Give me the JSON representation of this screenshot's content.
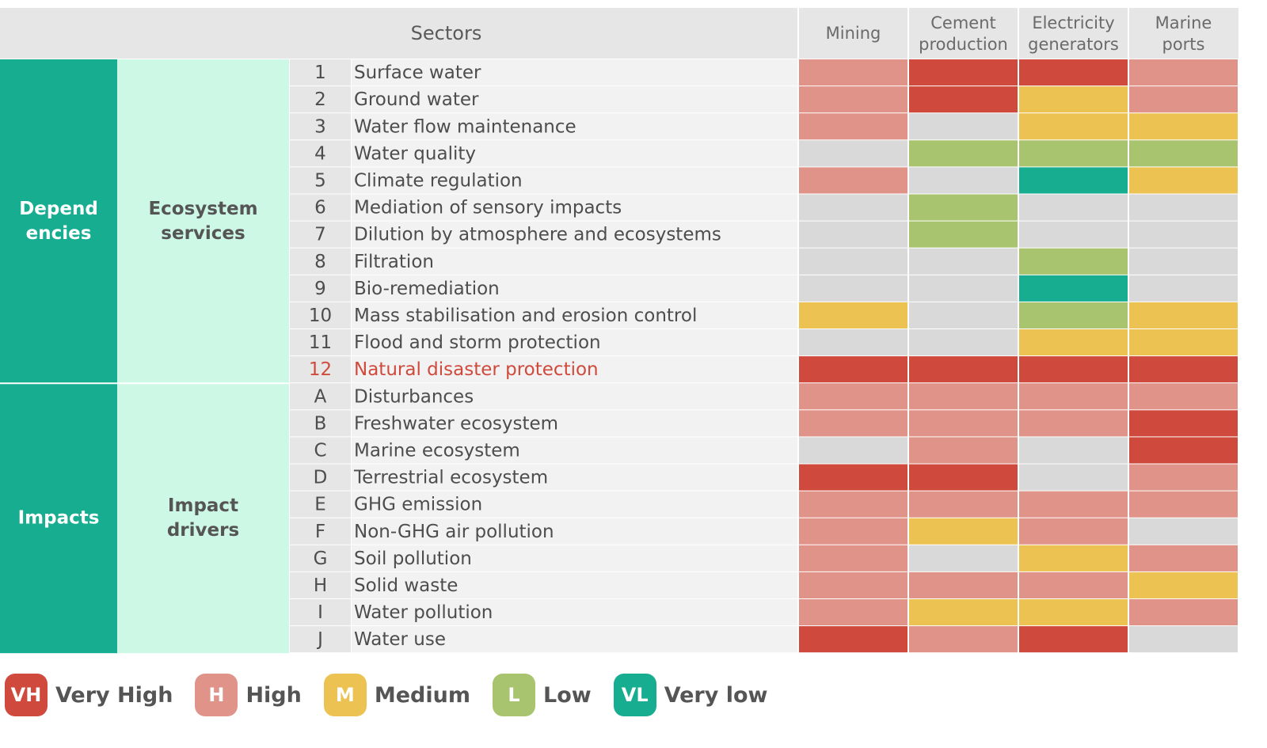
{
  "chart_data": {
    "type": "heatmap",
    "corner_label": "Sectors",
    "columns": [
      "Mining",
      "Cement production",
      "Electricity generators",
      "Marine ports"
    ],
    "groups": [
      {
        "name": "Dependencies",
        "label_lines": [
          "Depend",
          "encies"
        ],
        "sub_lines": [
          "Ecosystem",
          "services"
        ],
        "rows": 12
      },
      {
        "name": "Impacts",
        "label_lines": [
          "Impacts"
        ],
        "sub_lines": [
          "Impact",
          "drivers"
        ],
        "rows": 10
      }
    ],
    "rows": [
      {
        "id": "1",
        "label": "Surface water",
        "values": [
          "H",
          "VH",
          "VH",
          "H"
        ]
      },
      {
        "id": "2",
        "label": "Ground water",
        "values": [
          "H",
          "VH",
          "M",
          "H"
        ]
      },
      {
        "id": "3",
        "label": "Water flow maintenance",
        "values": [
          "H",
          "",
          "M",
          "M"
        ]
      },
      {
        "id": "4",
        "label": "Water quality",
        "values": [
          "",
          "L",
          "L",
          "L"
        ]
      },
      {
        "id": "5",
        "label": "Climate regulation",
        "values": [
          "H",
          "",
          "VL",
          "M"
        ]
      },
      {
        "id": "6",
        "label": "Mediation of sensory impacts",
        "values": [
          "",
          "L",
          "",
          ""
        ]
      },
      {
        "id": "7",
        "label": "Dilution by atmosphere and ecosystems",
        "values": [
          "",
          "L",
          "",
          ""
        ]
      },
      {
        "id": "8",
        "label": "Filtration",
        "values": [
          "",
          "",
          "L",
          ""
        ]
      },
      {
        "id": "9",
        "label": "Bio-remediation",
        "values": [
          "",
          "",
          "VL",
          ""
        ]
      },
      {
        "id": "10",
        "label": "Mass stabilisation and erosion control",
        "values": [
          "M",
          "",
          "L",
          "M"
        ]
      },
      {
        "id": "11",
        "label": "Flood and storm protection",
        "values": [
          "",
          "",
          "M",
          "M"
        ]
      },
      {
        "id": "12",
        "label": "Natural disaster protection",
        "values": [
          "VH",
          "VH",
          "VH",
          "VH"
        ],
        "highlight": true
      },
      {
        "id": "A",
        "label": "Disturbances",
        "values": [
          "H",
          "H",
          "H",
          "H"
        ]
      },
      {
        "id": "B",
        "label": "Freshwater ecosystem",
        "values": [
          "H",
          "H",
          "H",
          "VH"
        ]
      },
      {
        "id": "C",
        "label": "Marine ecosystem",
        "values": [
          "",
          "H",
          "",
          "VH"
        ]
      },
      {
        "id": "D",
        "label": "Terrestrial ecosystem",
        "values": [
          "VH",
          "VH",
          "",
          "H"
        ]
      },
      {
        "id": "E",
        "label": "GHG emission",
        "values": [
          "H",
          "H",
          "H",
          "H"
        ]
      },
      {
        "id": "F",
        "label": "Non-GHG air pollution",
        "values": [
          "H",
          "M",
          "H",
          ""
        ]
      },
      {
        "id": "G",
        "label": "Soil pollution",
        "values": [
          "H",
          "",
          "M",
          "H"
        ]
      },
      {
        "id": "H",
        "label": "Solid waste",
        "values": [
          "H",
          "H",
          "H",
          "M"
        ]
      },
      {
        "id": "I",
        "label": "Water pollution",
        "values": [
          "H",
          "M",
          "M",
          "H"
        ]
      },
      {
        "id": "J",
        "label": "Water use",
        "values": [
          "VH",
          "H",
          "VH",
          ""
        ]
      }
    ],
    "levels": [
      {
        "code": "VH",
        "label": "Very High",
        "color": "#cf4a3c"
      },
      {
        "code": "H",
        "label": "High",
        "color": "#e09388"
      },
      {
        "code": "M",
        "label": "Medium",
        "color": "#ecc353"
      },
      {
        "code": "L",
        "label": "Low",
        "color": "#a9c46f"
      },
      {
        "code": "VL",
        "label": "Very low",
        "color": "#17ad91"
      }
    ],
    "empty_color": "#d9d9d9",
    "highlight_color": "#cf4a3c",
    "group_color": "#17ad91",
    "subgroup_color": "#cdf8e6",
    "legend_placement": "bottom-left"
  }
}
